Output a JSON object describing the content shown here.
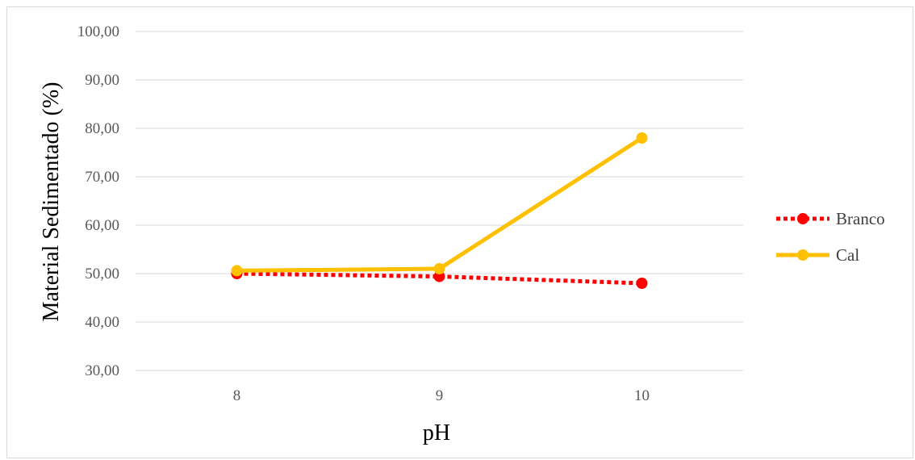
{
  "chart_data": {
    "type": "line",
    "title": "",
    "xlabel": "pH",
    "ylabel": "Material Sedimentado (%)",
    "categories": [
      "8",
      "9",
      "10"
    ],
    "ylim": [
      30,
      100
    ],
    "ytick_labels": [
      "30,00",
      "40,00",
      "50,00",
      "60,00",
      "70,00",
      "80,00",
      "90,00",
      "100,00"
    ],
    "yticks": [
      30,
      40,
      50,
      60,
      70,
      80,
      90,
      100
    ],
    "grid": true,
    "legend_position": "right",
    "series": [
      {
        "name": "Branco",
        "values": [
          50.0,
          49.4,
          48.0
        ],
        "color": "#ff0000",
        "line_style": "dotted",
        "marker": "circle"
      },
      {
        "name": "Cal",
        "values": [
          50.6,
          51.0,
          78.0
        ],
        "color": "#ffc000",
        "line_style": "solid",
        "marker": "circle"
      }
    ]
  }
}
